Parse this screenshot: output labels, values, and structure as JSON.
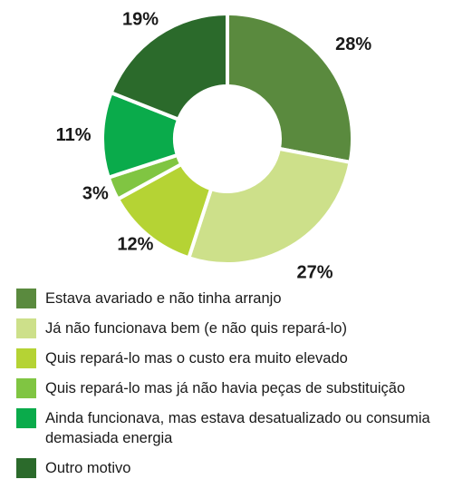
{
  "chart_data": {
    "type": "pie",
    "donut": true,
    "title": "",
    "categories": [
      "Estava avariado e não tinha arranjo",
      "Já não funcionava bem (e não quis repará-lo)",
      "Quis repará-lo mas o custo era muito elevado",
      "Quis repará-lo mas já não havia peças de substituição",
      "Ainda funcionava, mas estava desatualizado ou consumia demasiada energia",
      "Outro motivo"
    ],
    "values": [
      28,
      27,
      12,
      3,
      11,
      19
    ],
    "labels": [
      "28%",
      "27%",
      "12%",
      "3%",
      "11%",
      "19%"
    ],
    "colors": [
      "#5a8a3e",
      "#cde08a",
      "#b5d334",
      "#80c542",
      "#0aab4b",
      "#2b6a2b"
    ],
    "legend_position": "bottom",
    "legend": [
      "Estava avariado e não tinha arranjo",
      "Já não funcionava bem (e não quis repará-lo)",
      "Quis repará-lo mas o custo era muito elevado",
      "Quis repará-lo mas já não havia peças de substituição",
      "Ainda funcionava, mas estava desatualizado ou consumia demasiada energia",
      "Outro motivo"
    ]
  }
}
